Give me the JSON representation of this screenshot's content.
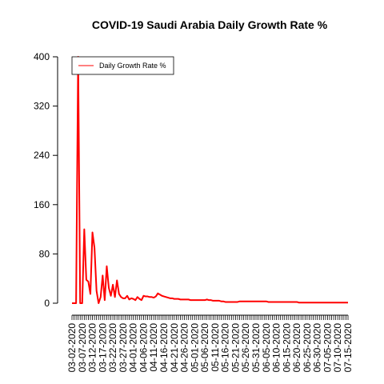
{
  "chart_data": {
    "type": "line",
    "title": "COVID-19 Saudi Arabia Daily Growth Rate %",
    "xlabel": "",
    "ylabel": "",
    "ylim": [
      0,
      400
    ],
    "y_ticks": [
      0,
      80,
      160,
      240,
      320,
      400
    ],
    "x_tick_labels": [
      "03-02-2020",
      "03-07-2020",
      "03-12-2020",
      "03-17-2020",
      "03-22-2020",
      "03-27-2020",
      "04-01-2020",
      "04-06-2020",
      "04-11-2020",
      "04-16-2020",
      "04-21-2020",
      "04-26-2020",
      "05-01-2020",
      "05-06-2020",
      "05-11-2020",
      "05-16-2020",
      "05-21-2020",
      "05-26-2020",
      "05-31-2020",
      "06-05-2020",
      "06-10-2020",
      "06-15-2020",
      "06-20-2020",
      "06-25-2020",
      "06-30-2020",
      "07-05-2020",
      "07-10-2020",
      "07-15-2020"
    ],
    "legend_position": "top-left",
    "grid": false,
    "colors": {
      "line": "#ff0000"
    },
    "series": [
      {
        "name": "Daily Growth Rate %",
        "values": [
          0,
          0,
          0,
          400,
          0,
          0,
          120,
          38,
          35,
          15,
          115,
          90,
          20,
          0,
          10,
          45,
          5,
          60,
          25,
          12,
          30,
          10,
          37,
          15,
          10,
          8,
          8,
          12,
          6,
          8,
          7,
          5,
          10,
          7,
          5,
          12,
          11,
          11,
          10,
          10,
          9,
          11,
          16,
          14,
          12,
          11,
          10,
          9,
          8,
          8,
          7,
          7,
          7,
          6,
          6,
          6,
          6,
          6,
          5,
          5,
          5,
          5,
          5,
          5,
          5,
          5,
          6,
          5,
          5,
          4,
          4,
          4,
          4,
          3,
          3,
          2,
          2,
          2,
          2,
          2,
          2,
          2,
          3,
          3,
          3,
          3,
          3,
          3,
          3,
          3,
          3,
          3,
          3,
          3,
          3,
          3,
          2,
          2,
          2,
          2,
          2,
          2,
          2,
          2,
          2,
          2,
          2,
          2,
          2,
          2,
          2,
          1,
          1,
          1,
          1,
          1,
          1,
          1,
          1,
          1,
          1,
          1,
          1,
          1,
          1,
          1,
          1,
          1,
          1,
          1,
          1,
          1,
          1,
          1,
          1,
          1
        ]
      }
    ]
  }
}
